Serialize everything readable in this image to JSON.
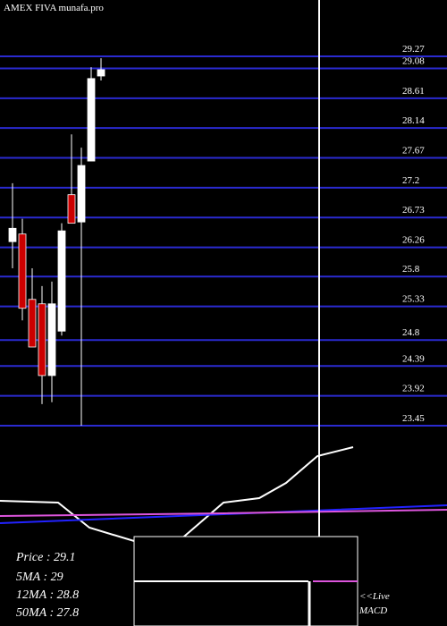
{
  "chart_data": [
    {
      "type": "candlestick",
      "title": "AMEX  FIVA munafa.pro",
      "open": [
        26.35,
        26.47,
        25.44,
        25.37,
        24.24,
        24.94,
        27.09,
        26.66,
        27.62,
        28.96
      ],
      "high": [
        27.27,
        26.71,
        25.93,
        25.65,
        25.72,
        26.64,
        28.04,
        27.83,
        29.1,
        29.24
      ],
      "low": [
        25.93,
        25.11,
        24.69,
        23.79,
        23.82,
        24.87,
        26.64,
        23.45,
        27.62,
        28.89
      ],
      "close": [
        26.56,
        25.3,
        24.69,
        24.24,
        25.37,
        26.52,
        26.64,
        27.55,
        28.92,
        29.06
      ],
      "up_color": "#ffffff",
      "down_color": "#cc0000",
      "grid_color": "#2a2ad0",
      "ylim": [
        23.45,
        29.27
      ],
      "yticks": [
        29.27,
        {
          "value": 29.08,
          "label": "29.08"
        },
        28.61,
        28.14,
        27.67,
        {
          "value": 27.2,
          "label": "27.2"
        },
        26.73,
        26.26,
        {
          "value": 25.8,
          "label": "25.8"
        },
        25.33,
        {
          "value": 24.8,
          "label": "24.8"
        },
        24.39,
        23.92,
        23.45
      ]
    },
    {
      "type": "line",
      "x": [
        0,
        13,
        20,
        30,
        40,
        50,
        58,
        64,
        71,
        79
      ],
      "xlim": [
        0,
        100
      ],
      "ylim": [
        -10,
        110
      ],
      "series": [
        {
          "color": "#ffffff",
          "values": [
            40,
            38,
            10,
            -5,
            -5,
            38,
            43,
            60,
            90,
            100
          ]
        },
        {
          "color": "#2222ff",
          "x": [
            0,
            50,
            100
          ],
          "values": [
            15,
            25,
            35
          ]
        },
        {
          "color": "#dd55dd",
          "x": [
            0,
            50,
            100
          ],
          "values": [
            23,
            26,
            30
          ]
        }
      ]
    }
  ],
  "info": {
    "price": "Price   : 29.1",
    "ma5": "5MA : 29",
    "ma12": "12MA : 28.8",
    "ma50": "50MA : 27.8",
    "live": "<<Live",
    "macd": "MACD"
  }
}
